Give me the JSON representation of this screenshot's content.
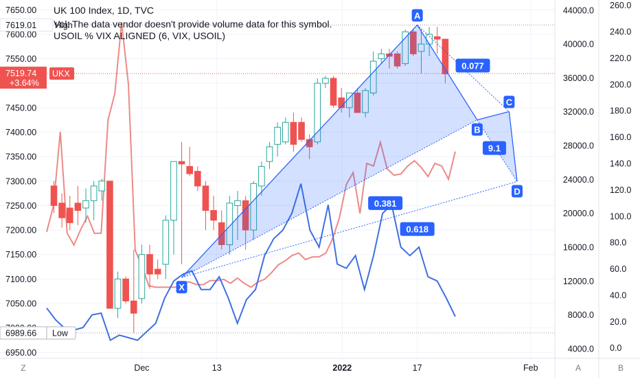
{
  "header": {
    "symbol_title": "UK 100 Index, 1D, TVC",
    "volume_note": "Vol: The data vendor doesn't provide volume data for this symbol.",
    "indicator_title": "USOIL % VIX ALIGNED (6, VIX, USOIL)"
  },
  "colors": {
    "up": "#26a69a",
    "down": "#ef5350",
    "pattern": "#2962ff",
    "pattern_fill": "#2962ff",
    "vix_line": "#3f6fe0",
    "usoil_line": "#ec8a87",
    "last_price_bg": "#ef5350"
  },
  "chart_data": {
    "type": "candlestick",
    "left_axis": {
      "ticks": [
        "6950.00",
        "7000.00",
        "7050.00",
        "7100.00",
        "7150.00",
        "7200.00",
        "7250.00",
        "7300.00",
        "7350.00",
        "7400.00",
        "7450.00",
        "7500.00",
        "7550.00",
        "7600.00",
        "7650.00"
      ],
      "range": [
        6935,
        7670
      ]
    },
    "mid_axis": {
      "ticks": [
        "4000.0",
        "8000.0",
        "12000.0",
        "16000.0",
        "20000.0",
        "24000.0",
        "28000.0",
        "32000.0",
        "36000.0",
        "40000.0",
        "44000.0"
      ],
      "range": [
        2700,
        45200
      ]
    },
    "right_axis": {
      "ticks": [
        "0.0",
        "20.0",
        "40.0",
        "60.0",
        "80.0",
        "100.0",
        "120.0",
        "140.0",
        "160.0",
        "180.0",
        "200.0",
        "220.0",
        "240.0",
        "260.0"
      ],
      "range": [
        -9,
        264
      ]
    },
    "x_axis": {
      "ticks": [
        "Dec",
        "13",
        "2022",
        "17",
        "Feb"
      ],
      "bottom_labels": [
        "Z",
        "A",
        "B"
      ]
    },
    "price_labels": {
      "high_value": "7619.01",
      "high_tag": "High",
      "last_value": "7519.74",
      "last_change": "+3.64%",
      "last_tag": "UKX",
      "low_value": "6989.66",
      "low_tag": "Low"
    },
    "candles": [
      {
        "o": 7290,
        "h": 7300,
        "l": 7235,
        "c": 7250
      },
      {
        "o": 7255,
        "h": 7275,
        "l": 7205,
        "c": 7225
      },
      {
        "o": 7245,
        "h": 7270,
        "l": 7200,
        "c": 7215
      },
      {
        "o": 7255,
        "h": 7290,
        "l": 7210,
        "c": 7240
      },
      {
        "o": 7245,
        "h": 7285,
        "l": 7215,
        "c": 7260
      },
      {
        "o": 7260,
        "h": 7300,
        "l": 7220,
        "c": 7290
      },
      {
        "o": 7280,
        "h": 7305,
        "l": 7260,
        "c": 7300
      },
      {
        "o": 7300,
        "h": 7300,
        "l": 7040,
        "c": 7040
      },
      {
        "o": 7040,
        "h": 7115,
        "l": 7020,
        "c": 7100
      },
      {
        "o": 7100,
        "h": 7105,
        "l": 7050,
        "c": 7055
      },
      {
        "o": 7055,
        "h": 7160,
        "l": 6990,
        "c": 7030
      },
      {
        "o": 7060,
        "h": 7170,
        "l": 7050,
        "c": 7150
      },
      {
        "o": 7150,
        "h": 7170,
        "l": 7080,
        "c": 7110
      },
      {
        "o": 7120,
        "h": 7140,
        "l": 7100,
        "c": 7110
      },
      {
        "o": 7130,
        "h": 7230,
        "l": 7100,
        "c": 7220
      },
      {
        "o": 7220,
        "h": 7340,
        "l": 7150,
        "c": 7340
      },
      {
        "o": 7340,
        "h": 7380,
        "l": 7130,
        "c": 7335
      },
      {
        "o": 7330,
        "h": 7370,
        "l": 7310,
        "c": 7315
      },
      {
        "o": 7320,
        "h": 7330,
        "l": 7280,
        "c": 7290
      },
      {
        "o": 7290,
        "h": 7300,
        "l": 7200,
        "c": 7240
      },
      {
        "o": 7240,
        "h": 7270,
        "l": 7200,
        "c": 7220
      },
      {
        "o": 7215,
        "h": 7240,
        "l": 7160,
        "c": 7170
      },
      {
        "o": 7170,
        "h": 7270,
        "l": 7150,
        "c": 7255
      },
      {
        "o": 7250,
        "h": 7280,
        "l": 7180,
        "c": 7260
      },
      {
        "o": 7260,
        "h": 7270,
        "l": 7160,
        "c": 7200
      },
      {
        "o": 7200,
        "h": 7300,
        "l": 7180,
        "c": 7295
      },
      {
        "o": 7290,
        "h": 7340,
        "l": 7270,
        "c": 7330
      },
      {
        "o": 7340,
        "h": 7380,
        "l": 7325,
        "c": 7370
      },
      {
        "o": 7375,
        "h": 7420,
        "l": 7350,
        "c": 7410
      },
      {
        "o": 7380,
        "h": 7430,
        "l": 7375,
        "c": 7420
      },
      {
        "o": 7420,
        "h": 7440,
        "l": 7360,
        "c": 7375
      },
      {
        "o": 7420,
        "h": 7430,
        "l": 7380,
        "c": 7385
      },
      {
        "o": 7385,
        "h": 7395,
        "l": 7345,
        "c": 7370
      },
      {
        "o": 7380,
        "h": 7510,
        "l": 7375,
        "c": 7500
      },
      {
        "o": 7500,
        "h": 7515,
        "l": 7490,
        "c": 7510
      },
      {
        "o": 7510,
        "h": 7515,
        "l": 7450,
        "c": 7455
      },
      {
        "o": 7470,
        "h": 7490,
        "l": 7440,
        "c": 7450
      },
      {
        "o": 7450,
        "h": 7480,
        "l": 7430,
        "c": 7480
      },
      {
        "o": 7480,
        "h": 7490,
        "l": 7440,
        "c": 7440
      },
      {
        "o": 7440,
        "h": 7490,
        "l": 7430,
        "c": 7485
      },
      {
        "o": 7480,
        "h": 7565,
        "l": 7475,
        "c": 7545
      },
      {
        "o": 7550,
        "h": 7570,
        "l": 7540,
        "c": 7560
      },
      {
        "o": 7560,
        "h": 7570,
        "l": 7530,
        "c": 7555
      },
      {
        "o": 7560,
        "h": 7565,
        "l": 7530,
        "c": 7535
      },
      {
        "o": 7540,
        "h": 7610,
        "l": 7535,
        "c": 7605
      },
      {
        "o": 7605,
        "h": 7610,
        "l": 7555,
        "c": 7560
      },
      {
        "o": 7565,
        "h": 7610,
        "l": 7520,
        "c": 7580
      },
      {
        "o": 7580,
        "h": 7615,
        "l": 7555,
        "c": 7600
      },
      {
        "o": 7595,
        "h": 7615,
        "l": 7560,
        "c": 7590
      },
      {
        "o": 7590,
        "h": 7590,
        "l": 7500,
        "c": 7519
      }
    ],
    "vix_line": [
      8800,
      7400,
      6400,
      6200,
      6500,
      8000,
      8200,
      5000,
      5600,
      5300,
      5000,
      6000,
      7000,
      10000,
      12000,
      12800,
      13200,
      11000,
      11000,
      12500,
      10000,
      7000,
      9800,
      11000,
      15000,
      17000,
      18000,
      20000,
      23500,
      18000,
      16000,
      21000,
      14000,
      13500,
      15000,
      11000,
      15000,
      20000,
      21000,
      16000,
      15000,
      16000,
      12500,
      12000,
      10000,
      7800
    ],
    "usoil_line": [
      88,
      108,
      164,
      87,
      78,
      90,
      100,
      87,
      87,
      173,
      193,
      247,
      200,
      74,
      62,
      47,
      46,
      46,
      46,
      46,
      50,
      50,
      48,
      48,
      51,
      51,
      52,
      49,
      53,
      49,
      46,
      50,
      52,
      57,
      63,
      66,
      70,
      72,
      67,
      69,
      69,
      72,
      83,
      99,
      124,
      133,
      102,
      140,
      138,
      156,
      136,
      131,
      132,
      138,
      142,
      137,
      130,
      140,
      138,
      128,
      149
    ],
    "harmonic": {
      "points": [
        {
          "label": "X",
          "i": 16,
          "price": 7103
        },
        {
          "label": "A",
          "i": 45.5,
          "price": 7619
        },
        {
          "label": "B",
          "i": 53,
          "price": 7425
        },
        {
          "label": "C",
          "i": 57,
          "price": 7442
        },
        {
          "label": "D",
          "i": 58,
          "price": 7299
        }
      ],
      "ratios": [
        {
          "label": "0.077",
          "near": "A-C"
        },
        {
          "label": "0.381",
          "near": "X-B"
        },
        {
          "label": "0.618",
          "near": "X-D"
        },
        {
          "label": "9.1",
          "near": "B-D"
        }
      ]
    }
  }
}
